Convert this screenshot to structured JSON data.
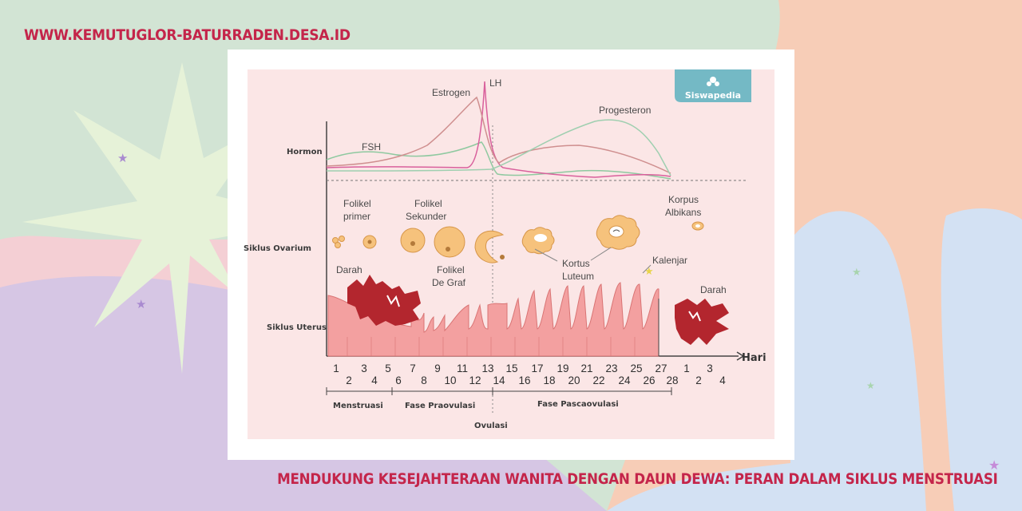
{
  "site_url": "WWW.KEMUTUGLOR-BATURRADEN.DESA.ID",
  "caption": "MENDUKUNG KESEJAHTERAAN WANITA DENGAN DAUN DEWA: PERAN DALAM SIKLUS MENSTRUASI",
  "colors": {
    "accent": "#c4254a",
    "card": "#ffffff",
    "panel": "#fbe6e6",
    "uterus": "#f3a0a0",
    "blood": "#b3262e",
    "follicle": "#f6c27c"
  },
  "diagram": {
    "logo": "Siswapedia",
    "rows": {
      "hormone": "Hormon",
      "ovary": "Siklus Ovarium",
      "uterus": "Siklus Uterus"
    },
    "hormones": {
      "fsh": "FSH",
      "estrogen": "Estrogen",
      "lh": "LH",
      "progesterone": "Progesteron"
    },
    "ovary_labels": {
      "primary": [
        "Folikel",
        "primer"
      ],
      "secondary": [
        "Folikel",
        "Sekunder"
      ],
      "graaf": [
        "Folikel",
        "De Graf"
      ],
      "luteum": [
        "Kortus",
        "Luteum"
      ],
      "albicans": [
        "Korpus",
        "Albikans"
      ]
    },
    "uterus_labels": {
      "blood1": "Darah",
      "blood2": "Darah",
      "glands": "Kalenjar"
    },
    "axis_label": "Hari",
    "days_top": [
      "1",
      "3",
      "5",
      "7",
      "9",
      "11",
      "13",
      "15",
      "17",
      "19",
      "21",
      "23",
      "25",
      "27",
      "1",
      "3"
    ],
    "days_bottom": [
      "2",
      "4",
      "6",
      "8",
      "10",
      "12",
      "14",
      "16",
      "18",
      "20",
      "22",
      "24",
      "26",
      "28",
      "2",
      "4"
    ],
    "phases": {
      "menstruation": "Menstruasi",
      "pre": "Fase Praovulasi",
      "ovulation": "Ovulasi",
      "post": "Fase Pascaovulasi"
    }
  }
}
